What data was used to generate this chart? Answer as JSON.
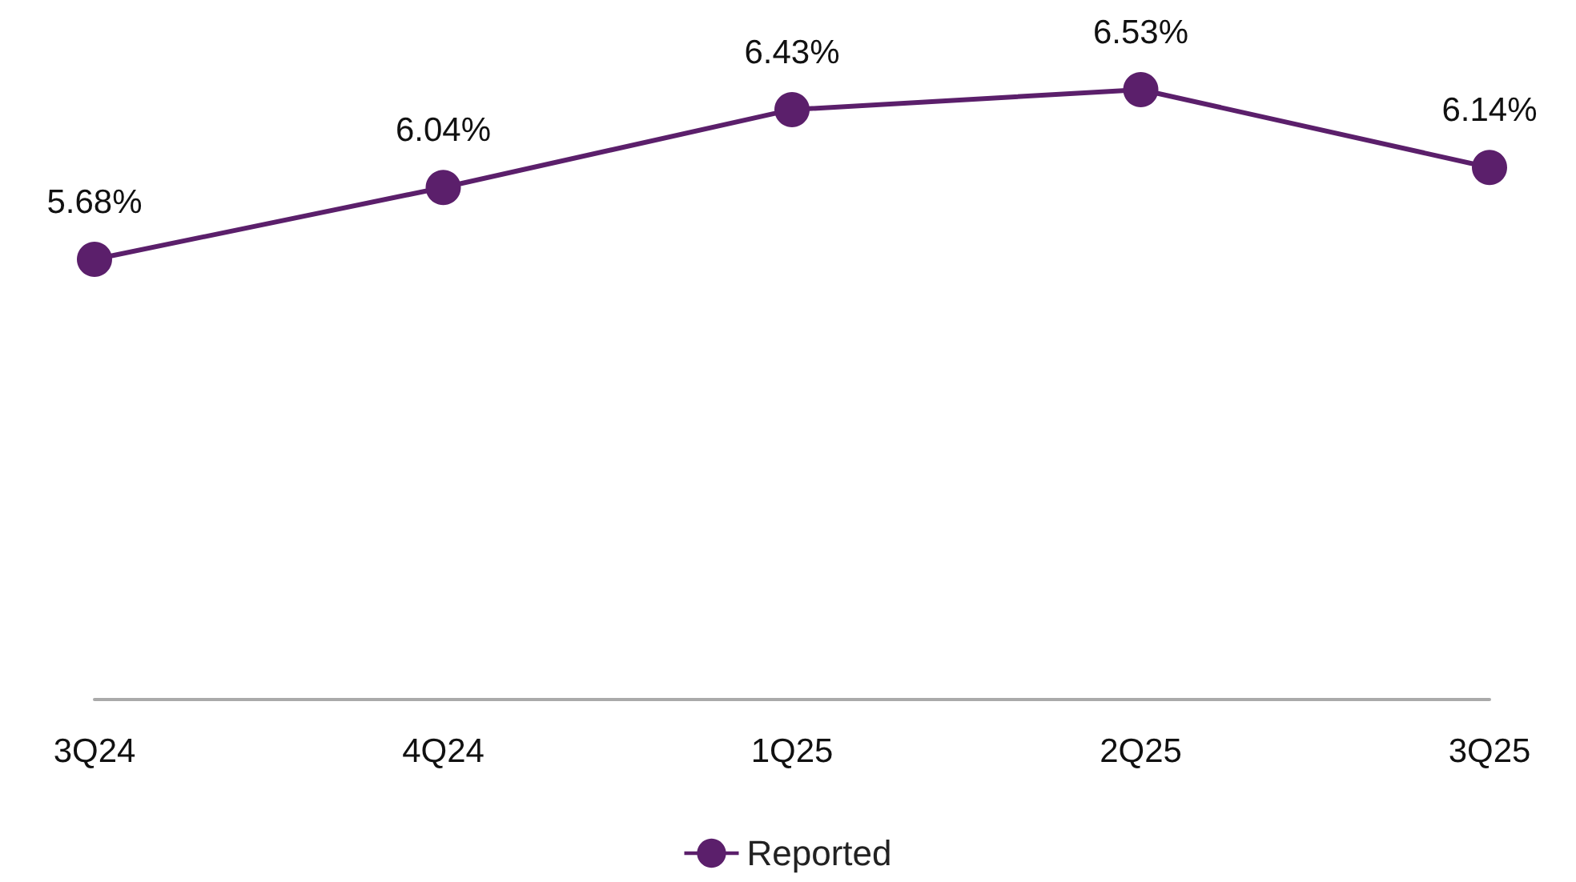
{
  "chart_data": {
    "type": "line",
    "categories": [
      "3Q24",
      "4Q24",
      "1Q25",
      "2Q25",
      "3Q25"
    ],
    "series": [
      {
        "name": "Reported",
        "color": "#5b1f6b",
        "values": [
          5.68,
          6.04,
          6.43,
          6.53,
          6.14
        ],
        "value_labels": [
          "5.68%",
          "6.04%",
          "6.43%",
          "6.53%",
          "6.14%"
        ]
      }
    ],
    "tick_labels": "x",
    "grid": false,
    "legend": "bottom",
    "marker": "circle",
    "line_style": "solid"
  }
}
